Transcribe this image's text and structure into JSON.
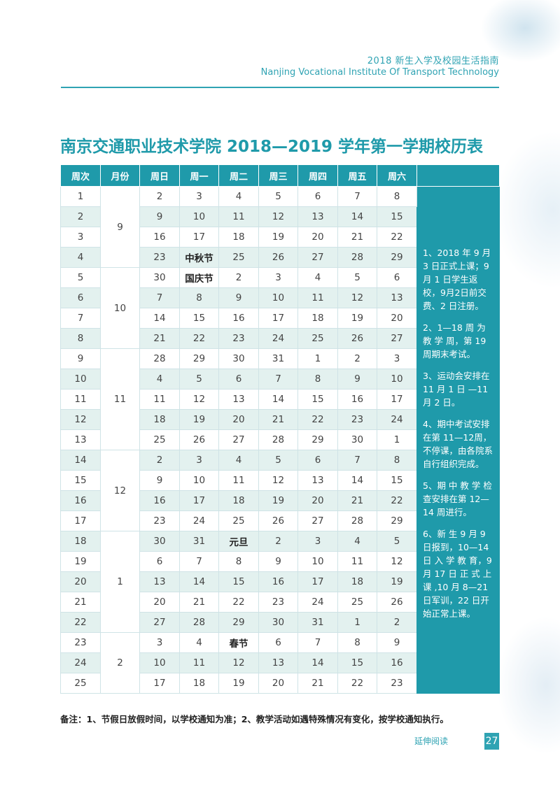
{
  "header": {
    "title_cn": "2018 新生入学及校园生活指南",
    "title_en": "Nanjing Vocational Institute Of Transport Technology"
  },
  "title": "南京交通职业技术学院 2018—2019 学年第一学期校历表",
  "table": {
    "headers": [
      "周次",
      "月份",
      "周日",
      "周一",
      "周二",
      "周三",
      "周四",
      "周五",
      "周六"
    ],
    "rows": [
      [
        "1",
        "2",
        "3",
        "4",
        "5",
        "6",
        "7",
        "8"
      ],
      [
        "2",
        "9",
        "10",
        "11",
        "12",
        "13",
        "14",
        "15"
      ],
      [
        "3",
        "16",
        "17",
        "18",
        "19",
        "20",
        "21",
        "22"
      ],
      [
        "4",
        "23",
        "中秋节",
        "25",
        "26",
        "27",
        "28",
        "29"
      ],
      [
        "5",
        "30",
        "国庆节",
        "2",
        "3",
        "4",
        "5",
        "6"
      ],
      [
        "6",
        "7",
        "8",
        "9",
        "10",
        "11",
        "12",
        "13"
      ],
      [
        "7",
        "14",
        "15",
        "16",
        "17",
        "18",
        "19",
        "20"
      ],
      [
        "8",
        "21",
        "22",
        "23",
        "24",
        "25",
        "26",
        "27"
      ],
      [
        "9",
        "28",
        "29",
        "30",
        "31",
        "1",
        "2",
        "3"
      ],
      [
        "10",
        "4",
        "5",
        "6",
        "7",
        "8",
        "9",
        "10"
      ],
      [
        "11",
        "11",
        "12",
        "13",
        "14",
        "15",
        "16",
        "17"
      ],
      [
        "12",
        "18",
        "19",
        "20",
        "21",
        "22",
        "23",
        "24"
      ],
      [
        "13",
        "25",
        "26",
        "27",
        "28",
        "29",
        "30",
        "1"
      ],
      [
        "14",
        "2",
        "3",
        "4",
        "5",
        "6",
        "7",
        "8"
      ],
      [
        "15",
        "9",
        "10",
        "11",
        "12",
        "13",
        "14",
        "15"
      ],
      [
        "16",
        "16",
        "17",
        "18",
        "19",
        "20",
        "21",
        "22"
      ],
      [
        "17",
        "23",
        "24",
        "25",
        "26",
        "27",
        "28",
        "29"
      ],
      [
        "18",
        "30",
        "31",
        "元旦",
        "2",
        "3",
        "4",
        "5"
      ],
      [
        "19",
        "6",
        "7",
        "8",
        "9",
        "10",
        "11",
        "12"
      ],
      [
        "20",
        "13",
        "14",
        "15",
        "16",
        "17",
        "18",
        "19"
      ],
      [
        "21",
        "20",
        "21",
        "22",
        "23",
        "24",
        "25",
        "26"
      ],
      [
        "22",
        "27",
        "28",
        "29",
        "30",
        "31",
        "1",
        "2"
      ],
      [
        "23",
        "3",
        "4",
        "春节",
        "6",
        "7",
        "8",
        "9"
      ],
      [
        "24",
        "10",
        "11",
        "12",
        "13",
        "14",
        "15",
        "16"
      ],
      [
        "25",
        "17",
        "18",
        "19",
        "20",
        "21",
        "22",
        "23"
      ]
    ],
    "months": [
      {
        "label": "9",
        "start": 0,
        "span": 4
      },
      {
        "label": "10",
        "start": 4,
        "span": 4
      },
      {
        "label": "11",
        "start": 8,
        "span": 5
      },
      {
        "label": "12",
        "start": 13,
        "span": 4
      },
      {
        "label": "1",
        "start": 17,
        "span": 5
      },
      {
        "label": "2",
        "start": 22,
        "span": 3
      }
    ],
    "holidays": [
      "中秋节",
      "国庆节",
      "元旦",
      "春节"
    ]
  },
  "notes": [
    "1、2018 年 9 月 3 日正式上课；9 月 1 日学生返校，9月2日前交费、2 日注册。",
    "2、1—18 周 为 教 学 周，第 19 周期末考试。",
    "3、运动会安排在 11 月 1 日 —11 月 2 日。",
    "4、期中考试安排在第 11—12周，不停课，由各院系自行组织完成。",
    "5、期 中 教 学 检 查安排在第 12—14 周进行。",
    "6、新 生 9 月 9 日报到，10—14 日 入 学 教 育，9 月 17 日 正 式 上 课 ,10 月 8—21 日军训，22 日开始正常上课。"
  ],
  "footnote": "备注：1、节假日放假时间，以学校通知为准；2、教学活动如遇特殊情况有变化，按学校通知执行。",
  "footer": {
    "label": "延伸阅读",
    "page": "27"
  },
  "colors": {
    "accent": "#1f9aaa",
    "stripe": "#e3f1ef"
  }
}
